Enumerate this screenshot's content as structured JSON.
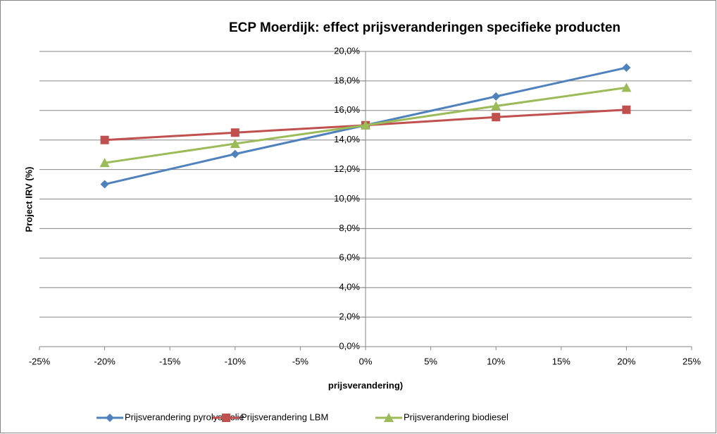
{
  "chart_data": {
    "type": "line",
    "title": "ECP Moerdijk: effect prijsveranderingen specifieke producten",
    "xlabel": "prijsverandering)",
    "ylabel": "Project IRV (%)",
    "x": [
      -20,
      -10,
      0,
      10,
      20
    ],
    "series": [
      {
        "name": "Prijsverandering pyrolyse olie",
        "color": "#4f81bd",
        "marker": "diamond",
        "values": [
          11.0,
          13.05,
          15.0,
          16.95,
          18.9
        ]
      },
      {
        "name": "Prijsverandering LBM",
        "color": "#c0504d",
        "marker": "square",
        "values": [
          14.0,
          14.5,
          15.0,
          15.55,
          16.05
        ]
      },
      {
        "name": "Prijsverandering biodiesel",
        "color": "#9bbb59",
        "marker": "triangle",
        "values": [
          12.45,
          13.75,
          15.0,
          16.3,
          17.55
        ]
      }
    ],
    "xlim": [
      -25,
      25
    ],
    "xticks": [
      {
        "value": -25,
        "label": "-25%"
      },
      {
        "value": -20,
        "label": "-20%"
      },
      {
        "value": -15,
        "label": "-15%"
      },
      {
        "value": -10,
        "label": "-10%"
      },
      {
        "value": -5,
        "label": "-5%"
      },
      {
        "value": 0,
        "label": "0%"
      },
      {
        "value": 5,
        "label": "5%"
      },
      {
        "value": 10,
        "label": "10%"
      },
      {
        "value": 15,
        "label": "15%"
      },
      {
        "value": 20,
        "label": "20%"
      },
      {
        "value": 25,
        "label": "25%"
      }
    ],
    "ylim": [
      0,
      20
    ],
    "yticks": [
      {
        "value": 0,
        "label": "0,0%"
      },
      {
        "value": 2,
        "label": "2,0%"
      },
      {
        "value": 4,
        "label": "4,0%"
      },
      {
        "value": 6,
        "label": "6,0%"
      },
      {
        "value": 8,
        "label": "8,0%"
      },
      {
        "value": 10,
        "label": "10,0%"
      },
      {
        "value": 12,
        "label": "12,0%"
      },
      {
        "value": 14,
        "label": "14,0%"
      },
      {
        "value": 16,
        "label": "16,0%"
      },
      {
        "value": 18,
        "label": "18,0%"
      },
      {
        "value": 20,
        "label": "20,0%"
      }
    ],
    "grid": true,
    "legend": "bottom"
  }
}
